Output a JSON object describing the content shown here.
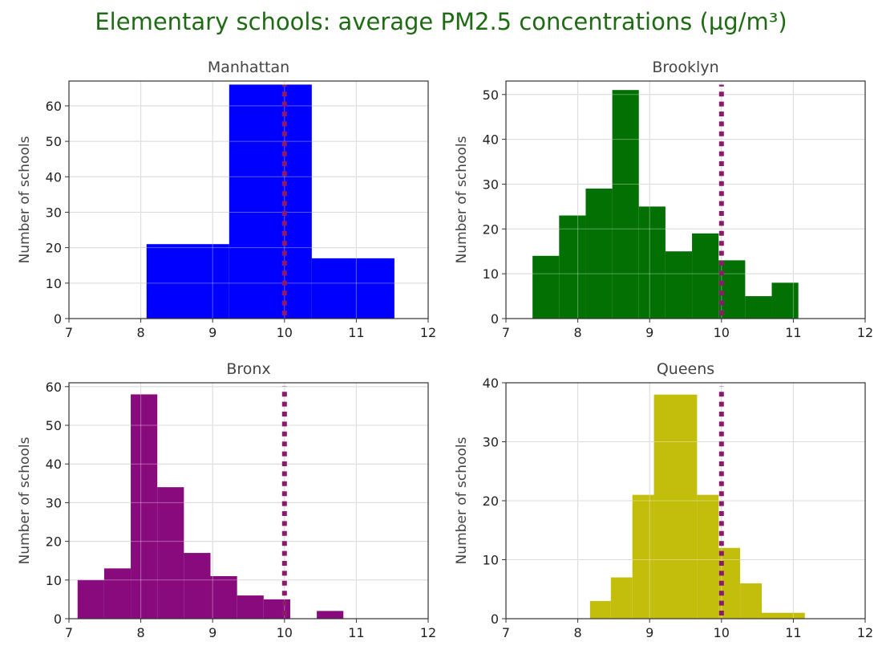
{
  "title": "Elementary schools: average PM2.5 concentrations (µg/m³)",
  "title_color": "#1f6b14",
  "threshold_color": "#8b1a6b",
  "chart_data": [
    {
      "type": "bar",
      "title": "Manhattan",
      "ylabel": "Number of schools",
      "color": "#0000ff",
      "xlim": [
        7,
        12
      ],
      "ylim": [
        0,
        67
      ],
      "xticks": [
        7,
        8,
        9,
        10,
        11,
        12
      ],
      "yticks": [
        0,
        10,
        20,
        30,
        40,
        50,
        60
      ],
      "bins": [
        {
          "x0": 8.08,
          "x1": 9.23,
          "count": 21
        },
        {
          "x0": 9.23,
          "x1": 10.38,
          "count": 66
        },
        {
          "x0": 10.38,
          "x1": 11.53,
          "count": 17
        }
      ],
      "threshold": 10,
      "grid": true
    },
    {
      "type": "bar",
      "title": "Brooklyn",
      "ylabel": "Number of schools",
      "color": "#037003",
      "xlim": [
        7,
        12
      ],
      "ylim": [
        0,
        53
      ],
      "xticks": [
        7,
        8,
        9,
        10,
        11,
        12
      ],
      "yticks": [
        0,
        10,
        20,
        30,
        40,
        50
      ],
      "bins": [
        {
          "x0": 7.37,
          "x1": 7.74,
          "count": 14
        },
        {
          "x0": 7.74,
          "x1": 8.11,
          "count": 23
        },
        {
          "x0": 8.11,
          "x1": 8.48,
          "count": 29
        },
        {
          "x0": 8.48,
          "x1": 8.85,
          "count": 51
        },
        {
          "x0": 8.85,
          "x1": 9.22,
          "count": 25
        },
        {
          "x0": 9.22,
          "x1": 9.59,
          "count": 15
        },
        {
          "x0": 9.59,
          "x1": 9.96,
          "count": 19
        },
        {
          "x0": 9.96,
          "x1": 10.33,
          "count": 13
        },
        {
          "x0": 10.33,
          "x1": 10.7,
          "count": 5
        },
        {
          "x0": 10.7,
          "x1": 11.07,
          "count": 8
        }
      ],
      "threshold": 10,
      "grid": true
    },
    {
      "type": "bar",
      "title": "Bronx",
      "ylabel": "Number of schools",
      "color": "#880a7d",
      "xlim": [
        7,
        12
      ],
      "ylim": [
        0,
        61
      ],
      "xticks": [
        7,
        8,
        9,
        10,
        11,
        12
      ],
      "yticks": [
        0,
        10,
        20,
        30,
        40,
        50,
        60
      ],
      "bins": [
        {
          "x0": 7.12,
          "x1": 7.49,
          "count": 10
        },
        {
          "x0": 7.49,
          "x1": 7.86,
          "count": 13
        },
        {
          "x0": 7.86,
          "x1": 8.23,
          "count": 58
        },
        {
          "x0": 8.23,
          "x1": 8.6,
          "count": 34
        },
        {
          "x0": 8.6,
          "x1": 8.97,
          "count": 17
        },
        {
          "x0": 8.97,
          "x1": 9.34,
          "count": 11
        },
        {
          "x0": 9.34,
          "x1": 9.71,
          "count": 6
        },
        {
          "x0": 9.71,
          "x1": 10.08,
          "count": 5
        },
        {
          "x0": 10.08,
          "x1": 10.45,
          "count": 0
        },
        {
          "x0": 10.45,
          "x1": 10.82,
          "count": 2
        }
      ],
      "threshold": 10,
      "grid": true
    },
    {
      "type": "bar",
      "title": "Queens",
      "ylabel": "Number of schools",
      "color": "#c2be0b",
      "xlim": [
        7,
        12
      ],
      "ylim": [
        0,
        40
      ],
      "xticks": [
        7,
        8,
        9,
        10,
        11,
        12
      ],
      "yticks": [
        0,
        10,
        20,
        30,
        40
      ],
      "bins": [
        {
          "x0": 8.17,
          "x1": 8.46,
          "count": 3
        },
        {
          "x0": 8.46,
          "x1": 8.76,
          "count": 7
        },
        {
          "x0": 8.76,
          "x1": 9.06,
          "count": 21
        },
        {
          "x0": 9.06,
          "x1": 9.66,
          "count": 38
        },
        {
          "x0": 9.66,
          "x1": 9.96,
          "count": 21
        },
        {
          "x0": 9.96,
          "x1": 10.26,
          "count": 12
        },
        {
          "x0": 10.26,
          "x1": 10.56,
          "count": 6
        },
        {
          "x0": 10.56,
          "x1": 11.16,
          "count": 1
        }
      ],
      "threshold": 10,
      "grid": true
    }
  ]
}
